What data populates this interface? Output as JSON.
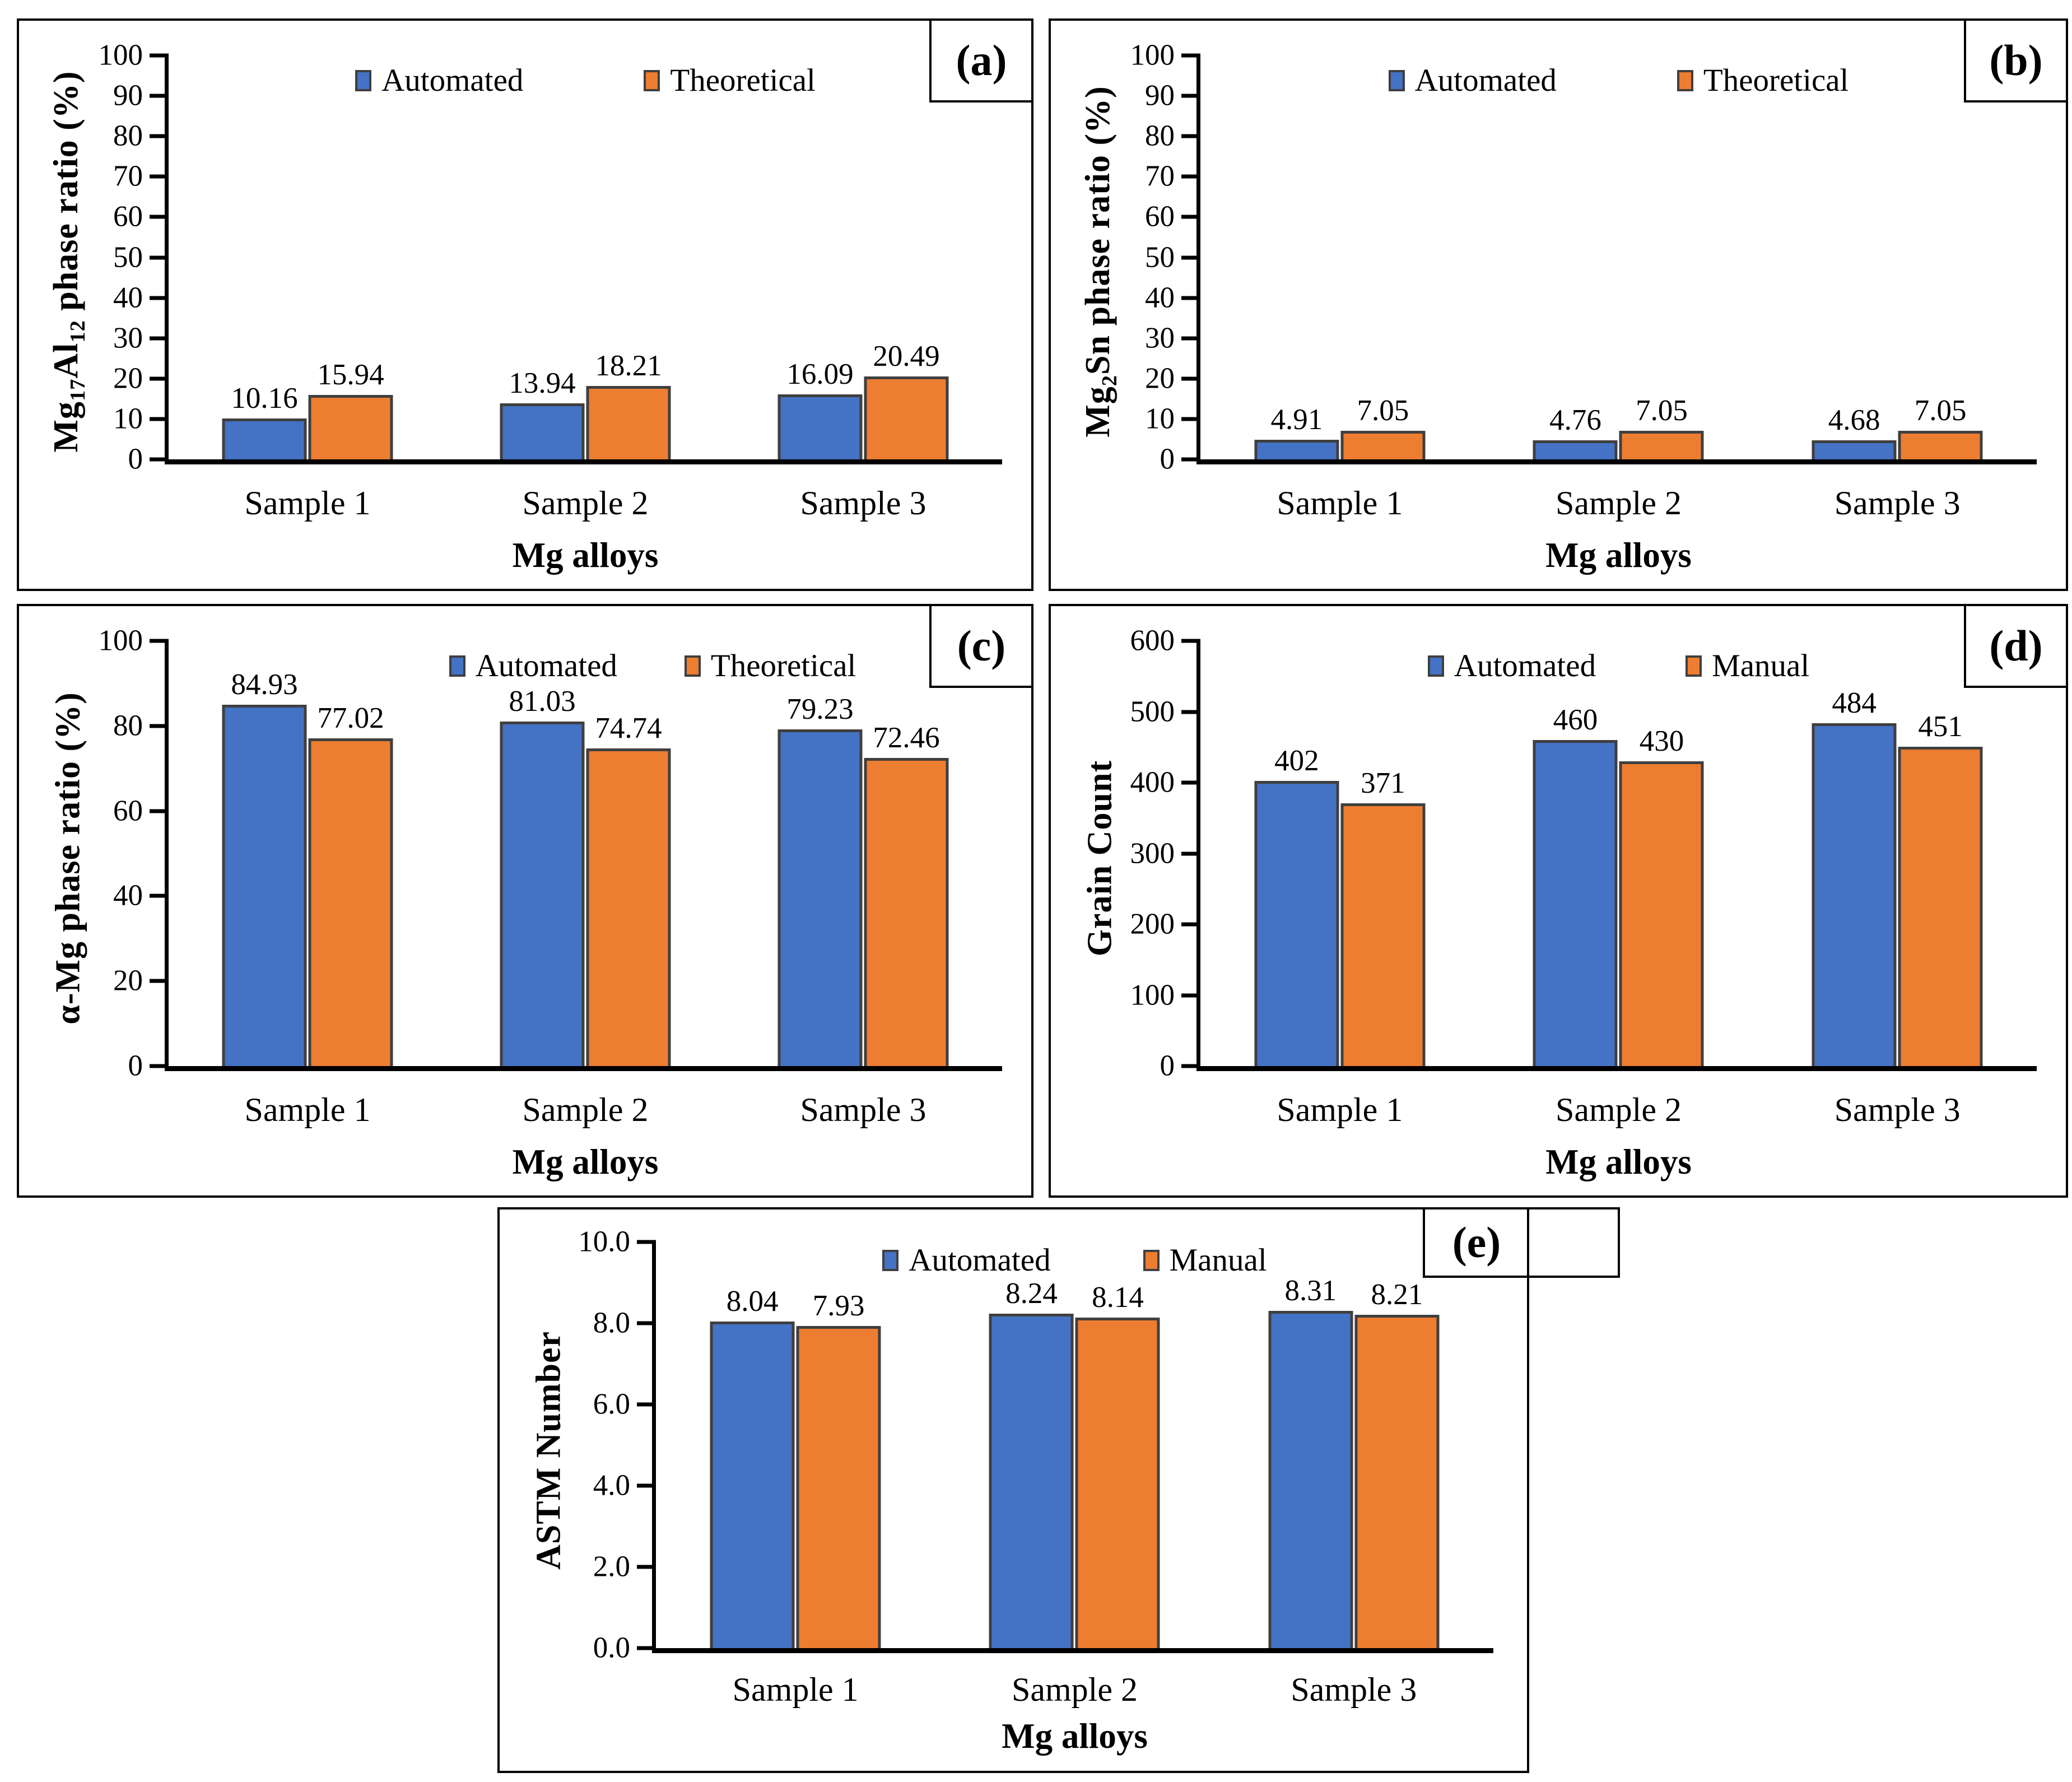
{
  "figure": {
    "background": "#ffffff"
  },
  "palette": {
    "series_colors": [
      "#4472C4",
      "#ED7D31"
    ],
    "bar_border": "#3F3F3F",
    "axis_color": "#000000",
    "text_color": "#000000"
  },
  "chart_data": [
    {
      "type": "bar",
      "panel": "(a)",
      "title": "",
      "ylabel": "Mg17Al12 phase ratio (%)",
      "ylabel_parts": [
        {
          "t": "Mg"
        },
        {
          "t": "17",
          "sub": true
        },
        {
          "t": "Al"
        },
        {
          "t": "12",
          "sub": true
        },
        {
          "t": " phase ratio (%)"
        }
      ],
      "xlabel": "Mg alloys",
      "ylim": [
        0,
        100
      ],
      "yticks": [
        "0",
        "10",
        "20",
        "30",
        "40",
        "50",
        "60",
        "70",
        "80",
        "90",
        "100"
      ],
      "grid": false,
      "legend_position": "top-center",
      "categories": [
        "Sample 1",
        "Sample 2",
        "Sample 3"
      ],
      "series": [
        {
          "name": "Automated",
          "values": [
            10.16,
            13.94,
            16.09
          ],
          "labels": [
            "10.16",
            "13.94",
            "16.09"
          ]
        },
        {
          "name": "Theoretical",
          "values": [
            15.94,
            18.21,
            20.49
          ],
          "labels": [
            "15.94",
            "18.21",
            "20.49"
          ]
        }
      ]
    },
    {
      "type": "bar",
      "panel": "(b)",
      "title": "",
      "ylabel": "Mg2Sn phase ratio (%)",
      "ylabel_parts": [
        {
          "t": "Mg"
        },
        {
          "t": "2",
          "sub": true
        },
        {
          "t": "Sn phase ratio (%)"
        }
      ],
      "xlabel": "Mg alloys",
      "ylim": [
        0,
        100
      ],
      "yticks": [
        "0",
        "10",
        "20",
        "30",
        "40",
        "50",
        "60",
        "70",
        "80",
        "90",
        "100"
      ],
      "grid": false,
      "legend_position": "top-center",
      "categories": [
        "Sample 1",
        "Sample 2",
        "Sample 3"
      ],
      "series": [
        {
          "name": "Automated",
          "values": [
            4.91,
            4.76,
            4.68
          ],
          "labels": [
            "4.91",
            "4.76",
            "4.68"
          ]
        },
        {
          "name": "Theoretical",
          "values": [
            7.05,
            7.05,
            7.05
          ],
          "labels": [
            "7.05",
            "7.05",
            "7.05"
          ]
        }
      ]
    },
    {
      "type": "bar",
      "panel": "(c)",
      "title": "",
      "ylabel": "α-Mg phase ratio (%)",
      "ylabel_parts": [
        {
          "t": "α-Mg phase ratio (%)"
        }
      ],
      "xlabel": "Mg alloys",
      "ylim": [
        0,
        100
      ],
      "yticks": [
        "0",
        "20",
        "40",
        "60",
        "80",
        "100"
      ],
      "grid": false,
      "legend_position": "top-center",
      "categories": [
        "Sample 1",
        "Sample 2",
        "Sample 3"
      ],
      "series": [
        {
          "name": "Automated",
          "values": [
            84.93,
            81.03,
            79.23
          ],
          "labels": [
            "84.93",
            "81.03",
            "79.23"
          ]
        },
        {
          "name": "Theoretical",
          "values": [
            77.02,
            74.74,
            72.46
          ],
          "labels": [
            "77.02",
            "74.74",
            "72.46"
          ]
        }
      ]
    },
    {
      "type": "bar",
      "panel": "(d)",
      "title": "",
      "ylabel": "Grain Count",
      "ylabel_parts": [
        {
          "t": "Grain Count"
        }
      ],
      "xlabel": "Mg alloys",
      "ylim": [
        0,
        600
      ],
      "yticks": [
        "0",
        "100",
        "200",
        "300",
        "400",
        "500",
        "600"
      ],
      "grid": false,
      "legend_position": "top-center",
      "categories": [
        "Sample 1",
        "Sample 2",
        "Sample 3"
      ],
      "series": [
        {
          "name": "Automated",
          "values": [
            402,
            460,
            484
          ],
          "labels": [
            "402",
            "460",
            "484"
          ]
        },
        {
          "name": "Manual",
          "values": [
            371,
            430,
            451
          ],
          "labels": [
            "371",
            "430",
            "451"
          ]
        }
      ]
    },
    {
      "type": "bar",
      "panel": "(e)",
      "title": "",
      "ylabel": "ASTM Number",
      "ylabel_parts": [
        {
          "t": "ASTM Number"
        }
      ],
      "xlabel": "Mg alloys",
      "ylim": [
        0,
        10
      ],
      "yticks": [
        "0.0",
        "2.0",
        "4.0",
        "6.0",
        "8.0",
        "10.0"
      ],
      "grid": false,
      "legend_position": "top-center",
      "categories": [
        "Sample 1",
        "Sample 2",
        "Sample 3"
      ],
      "series": [
        {
          "name": "Automated",
          "values": [
            8.04,
            8.24,
            8.31
          ],
          "labels": [
            "8.04",
            "8.24",
            "8.31"
          ]
        },
        {
          "name": "Manual",
          "values": [
            7.93,
            8.14,
            8.21
          ],
          "labels": [
            "7.93",
            "8.14",
            "8.21"
          ]
        }
      ]
    }
  ]
}
